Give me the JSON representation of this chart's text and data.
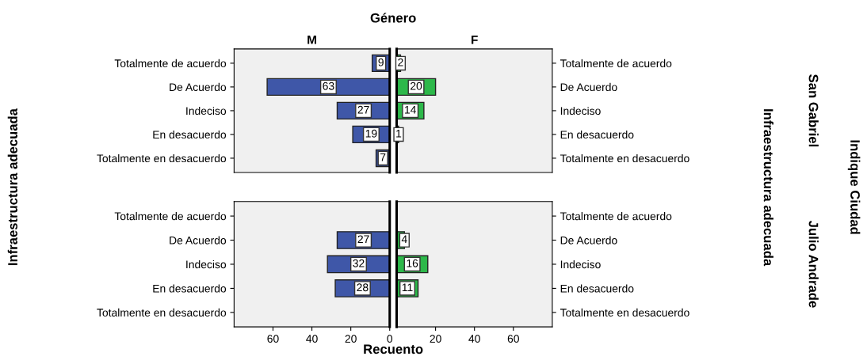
{
  "chart_data": [
    {
      "type": "bar",
      "orientation": "horizontal",
      "ylabel": "Infraestructura adecuada",
      "annotations": [
        "Género"
      ],
      "categories": [
        "Totalmente de acuerdo",
        "De Acuerdo",
        "Indeciso",
        "En desacuerdo",
        "Totalmente en desacuerdo"
      ],
      "series": [
        {
          "name": "M",
          "color": "#3f57a8",
          "values": [
            9,
            63,
            27,
            19,
            7
          ]
        }
      ],
      "data_labels": true,
      "xlim": [
        80,
        0
      ],
      "xticks": [
        60,
        40,
        20,
        0
      ],
      "tick_labels": "y"
    },
    {
      "type": "bar",
      "orientation": "horizontal",
      "y2label": "Infraestructura adecuada",
      "annotations": [
        "San Gabriel",
        "Indique Ciudad"
      ],
      "categories": [
        "Totalmente de acuerdo",
        "De Acuerdo",
        "Indeciso",
        "En desacuerdo",
        "Totalmente en desacuerdo"
      ],
      "series": [
        {
          "name": "F",
          "color": "#2db84a",
          "values": [
            2,
            20,
            14,
            1,
            null
          ]
        }
      ],
      "data_labels": true,
      "xlim": [
        0,
        80
      ],
      "xticks": [
        20,
        40,
        60
      ],
      "tick_labels": "y"
    },
    {
      "type": "bar",
      "orientation": "horizontal",
      "xlabel": "Recuento",
      "categories": [
        "Totalmente de acuerdo",
        "De Acuerdo",
        "Indeciso",
        "En desacuerdo",
        "Totalmente en desacuerdo"
      ],
      "series": [
        {
          "color": "#3f57a8",
          "values": [
            null,
            27,
            32,
            28,
            null
          ]
        }
      ],
      "data_labels": true,
      "xlim": [
        80,
        0
      ],
      "xticks": [
        60,
        40,
        20,
        0
      ]
    },
    {
      "type": "bar",
      "orientation": "horizontal",
      "annotations": [
        "Julio Andrade"
      ],
      "categories": [
        "Totalmente de acuerdo",
        "De Acuerdo",
        "Indeciso",
        "En desacuerdo",
        "Totalmente en desacuerdo"
      ],
      "series": [
        {
          "color": "#2db84a",
          "values": [
            null,
            4,
            16,
            11,
            null
          ]
        }
      ],
      "data_labels": true,
      "xlim": [
        0,
        80
      ],
      "xticks": [
        20,
        40,
        60
      ]
    }
  ]
}
